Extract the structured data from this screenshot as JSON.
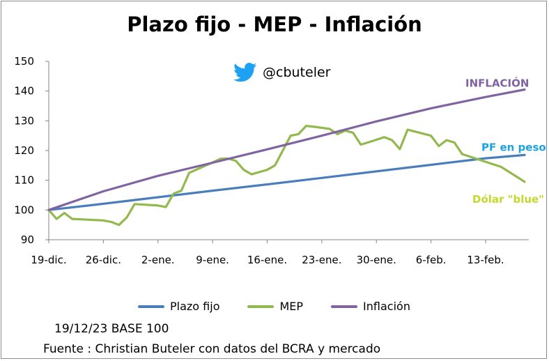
{
  "chart_data": {
    "type": "line",
    "title": "Plazo fijo - MEP - Inflación",
    "xlabel": "",
    "ylabel": "",
    "ylim": [
      90,
      150
    ],
    "yticks": [
      90,
      100,
      110,
      120,
      130,
      140,
      150
    ],
    "xlim": [
      "2023-12-19",
      "2024-02-18"
    ],
    "xticks": [
      "2023-12-19",
      "2023-12-26",
      "2024-01-02",
      "2024-01-09",
      "2024-01-16",
      "2024-01-23",
      "2024-01-30",
      "2024-02-06",
      "2024-02-13"
    ],
    "xtick_labels": [
      "19-dic.",
      "26-dic.",
      "2-ene.",
      "9-ene.",
      "16-ene.",
      "23-ene.",
      "30-ene.",
      "6-feb.",
      "13-feb."
    ],
    "grid": false,
    "legend_position": "bottom",
    "series": [
      {
        "name": "Plazo fijo",
        "color": "#4a7ebb",
        "points": [
          [
            "2023-12-19",
            100.0
          ],
          [
            "2023-12-26",
            102.1
          ],
          [
            "2024-01-02",
            104.3
          ],
          [
            "2024-01-09",
            106.5
          ],
          [
            "2024-01-16",
            108.6
          ],
          [
            "2024-01-23",
            110.8
          ],
          [
            "2024-01-30",
            113.0
          ],
          [
            "2024-02-06",
            115.2
          ],
          [
            "2024-02-13",
            117.4
          ],
          [
            "2024-02-18",
            118.5
          ]
        ]
      },
      {
        "name": "MEP",
        "color": "#92b94e",
        "points": [
          [
            "2023-12-19",
            100
          ],
          [
            "2023-12-20",
            97.0
          ],
          [
            "2023-12-21",
            99.0
          ],
          [
            "2023-12-22",
            97.0
          ],
          [
            "2023-12-26",
            96.5
          ],
          [
            "2023-12-27",
            96.0
          ],
          [
            "2023-12-28",
            95.0
          ],
          [
            "2023-12-29",
            97.5
          ],
          [
            "2023-12-30",
            102.0
          ],
          [
            "2024-01-02",
            101.5
          ],
          [
            "2024-01-03",
            101.0
          ],
          [
            "2024-01-04",
            105.5
          ],
          [
            "2024-01-05",
            106.5
          ],
          [
            "2024-01-06",
            112.5
          ],
          [
            "2024-01-09",
            116.0
          ],
          [
            "2024-01-10",
            117.2
          ],
          [
            "2024-01-11",
            117.3
          ],
          [
            "2024-01-12",
            116.5
          ],
          [
            "2024-01-13",
            113.5
          ],
          [
            "2024-01-14",
            112.0
          ],
          [
            "2024-01-16",
            113.5
          ],
          [
            "2024-01-17",
            115.0
          ],
          [
            "2024-01-19",
            125.0
          ],
          [
            "2024-01-20",
            125.5
          ],
          [
            "2024-01-21",
            128.3
          ],
          [
            "2024-01-22",
            128.0
          ],
          [
            "2024-01-24",
            127.3
          ],
          [
            "2024-01-25",
            125.5
          ],
          [
            "2024-01-26",
            126.7
          ],
          [
            "2024-01-27",
            126.0
          ],
          [
            "2024-01-28",
            122.0
          ],
          [
            "2024-01-29",
            122.8
          ],
          [
            "2024-01-31",
            124.5
          ],
          [
            "2024-02-01",
            123.5
          ],
          [
            "2024-02-02",
            120.5
          ],
          [
            "2024-02-03",
            127.0
          ],
          [
            "2024-02-06",
            125.0
          ],
          [
            "2024-02-07",
            121.5
          ],
          [
            "2024-02-08",
            123.5
          ],
          [
            "2024-02-09",
            122.7
          ],
          [
            "2024-02-10",
            118.8
          ],
          [
            "2024-02-15",
            114.5
          ],
          [
            "2024-02-18",
            109.5
          ]
        ]
      },
      {
        "name": "Inflación",
        "color": "#8064a2",
        "points": [
          [
            "2023-12-19",
            100.0
          ],
          [
            "2023-12-26",
            106.3
          ],
          [
            "2024-01-02",
            111.5
          ],
          [
            "2024-01-09",
            115.9
          ],
          [
            "2024-01-16",
            120.4
          ],
          [
            "2024-01-23",
            125.0
          ],
          [
            "2024-01-30",
            129.8
          ],
          [
            "2024-02-06",
            134.2
          ],
          [
            "2024-02-13",
            138.0
          ],
          [
            "2024-02-18",
            140.5
          ]
        ]
      }
    ],
    "annotations": [
      {
        "text": "INFLACIÓN",
        "series": "Inflación",
        "color": "#8064a2"
      },
      {
        "text": "PF en peso",
        "series": "Plazo fijo",
        "color": "#1fa3e0"
      },
      {
        "text": "Dólar \"blue\"",
        "series": "MEP",
        "color": "#c4d82e"
      }
    ]
  },
  "twitter": {
    "icon": "twitter-bird-icon",
    "handle": "@cbuteler",
    "color": "#1da1f2"
  },
  "notes": {
    "base": "19/12/23 BASE 100",
    "source": "Fuente : Christian Buteler con datos del BCRA y mercado"
  }
}
